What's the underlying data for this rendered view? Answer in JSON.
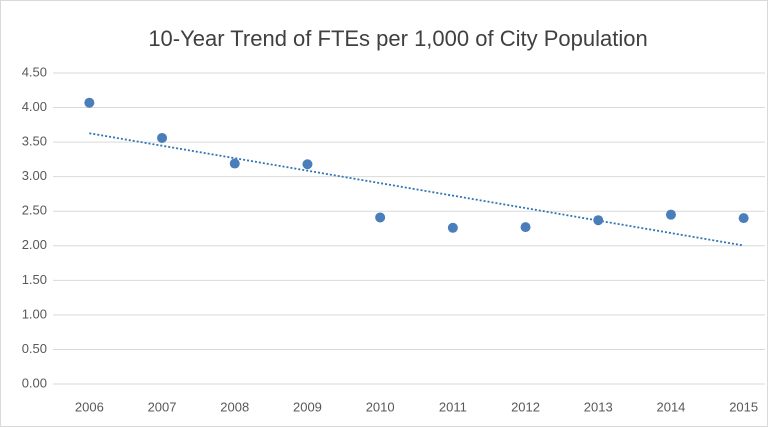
{
  "chart_data": {
    "type": "scatter",
    "title": "10-Year Trend of FTEs per 1,000 of City Population",
    "x": [
      2006,
      2007,
      2008,
      2009,
      2010,
      2011,
      2012,
      2013,
      2014,
      2015
    ],
    "values": [
      4.07,
      3.56,
      3.19,
      3.18,
      2.41,
      2.26,
      2.27,
      2.37,
      2.45,
      2.4
    ],
    "color": "#4a7ebb",
    "trendline": "linear",
    "trendline_color": "#2e75b6",
    "xlim": [
      2005.5,
      2015.5
    ],
    "xticks": [
      2006,
      2007,
      2008,
      2009,
      2010,
      2011,
      2012,
      2013,
      2014,
      2015
    ],
    "ylim": [
      0,
      4.5
    ],
    "yticks": [
      {
        "value": 0,
        "label": "0.00"
      },
      {
        "value": 0.5,
        "label": "0.50"
      },
      {
        "value": 1,
        "label": "1.00"
      },
      {
        "value": 1.5,
        "label": "1.50"
      },
      {
        "value": 2,
        "label": "2.00"
      },
      {
        "value": 2.5,
        "label": "2.50"
      },
      {
        "value": 3,
        "label": "3.00"
      },
      {
        "value": 3.5,
        "label": "3.50"
      },
      {
        "value": 4,
        "label": "4.00"
      },
      {
        "value": 4.5,
        "label": "4.50"
      }
    ],
    "grid": true
  }
}
